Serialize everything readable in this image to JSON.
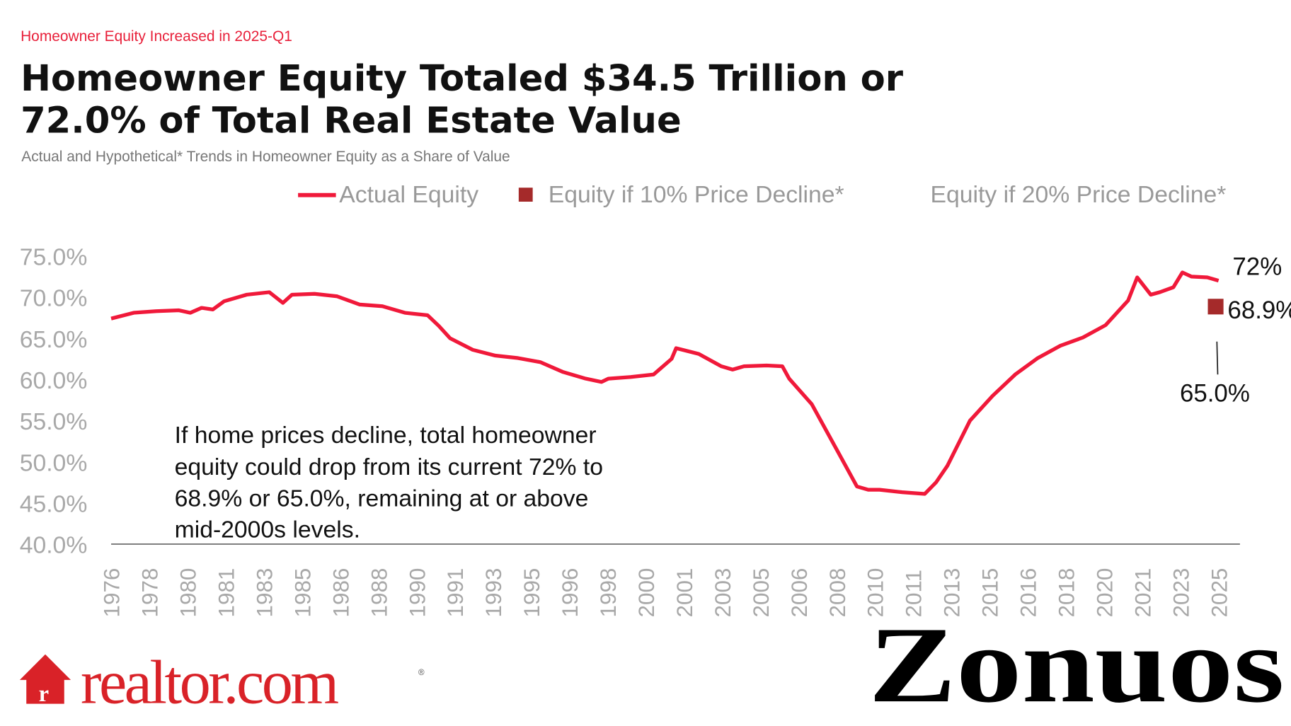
{
  "kicker": "Homeowner Equity Increased in 2025-Q1",
  "title_line1": "Homeowner Equity Totaled $34.5 Trillion or",
  "title_line2": "72.0% of Total Real Estate Value",
  "subtitle": "Actual and Hypothetical* Trends in Homeowner Equity as a Share of Value",
  "colors": {
    "accent": "#e8203a",
    "line": "#f0193a",
    "marker": "#a52a2a",
    "axis_text": "#9a9a9a",
    "text": "#111111"
  },
  "chart_data": {
    "type": "line",
    "title": "Homeowner Equity Totaled $34.5 Trillion or 72.0% of Total Real Estate Value",
    "ylim": [
      40,
      75
    ],
    "yticks": [
      "75.0%",
      "70.0%",
      "65.0%",
      "60.0%",
      "55.0%",
      "50.0%",
      "45.0%",
      "40.0%"
    ],
    "ytick_values": [
      75,
      70,
      65,
      60,
      55,
      50,
      45,
      40
    ],
    "xtick_labels": [
      "1976",
      "1978",
      "1980",
      "1981",
      "1983",
      "1985",
      "1986",
      "1988",
      "1990",
      "1991",
      "1993",
      "1995",
      "1996",
      "1998",
      "2000",
      "2001",
      "2003",
      "2005",
      "2006",
      "2008",
      "2010",
      "2011",
      "2013",
      "2015",
      "2016",
      "2018",
      "2020",
      "2021",
      "2023",
      "2025"
    ],
    "grid": false,
    "legend_position": "top",
    "legend": [
      "Actual Equity",
      "Equity if 10% Price Decline*",
      "Equity if 20% Price Decline*"
    ],
    "series": [
      {
        "name": "Actual Equity",
        "x": [
          1976,
          1977,
          1978,
          1979,
          1979.5,
          1980,
          1980.5,
          1981,
          1982,
          1983,
          1983.6,
          1984,
          1985,
          1986,
          1987,
          1988,
          1989,
          1990,
          1990.5,
          1991,
          1992,
          1993,
          1994,
          1995,
          1996,
          1997,
          1997.7,
          1998,
          1999,
          2000,
          2000.8,
          2001,
          2002,
          2003,
          2003.5,
          2004,
          2005,
          2005.7,
          2006,
          2007,
          2008,
          2009,
          2009.5,
          2010,
          2011,
          2012,
          2012.5,
          2013,
          2014,
          2015,
          2016,
          2017,
          2018,
          2019,
          2020,
          2021,
          2021.4,
          2022,
          2022.4,
          2023,
          2023.4,
          2023.8,
          2024.5,
          2025
        ],
        "y": [
          67.4,
          68.1,
          68.3,
          68.4,
          68.1,
          68.7,
          68.5,
          69.5,
          70.3,
          70.6,
          69.3,
          70.3,
          70.4,
          70.1,
          69.1,
          68.9,
          68.1,
          67.8,
          66.5,
          65,
          63.6,
          62.9,
          62.6,
          62.1,
          60.9,
          60.1,
          59.7,
          60.1,
          60.3,
          60.6,
          62.5,
          63.8,
          63.1,
          61.6,
          61.2,
          61.6,
          61.7,
          61.6,
          60.1,
          57,
          52,
          47,
          46.6,
          46.6,
          46.3,
          46.1,
          47.5,
          49.5,
          55,
          58,
          60.6,
          62.6,
          64.1,
          65.1,
          66.6,
          69.6,
          72.4,
          70.3,
          70.6,
          71.2,
          73,
          72.5,
          72.4,
          72.0
        ]
      },
      {
        "name": "Equity if 10% Price Decline*",
        "x": [
          2025
        ],
        "y": [
          68.9
        ]
      },
      {
        "name": "Equity if 20% Price Decline*",
        "x": [
          2025
        ],
        "y": [
          65.0
        ]
      }
    ],
    "data_labels": {
      "actual": "72%",
      "decline10": "68.9%",
      "decline20": "65.0%"
    },
    "annotation": [
      "If home prices decline, total homeowner",
      "equity could drop from its current 72% to",
      "68.9% or 65.0%, remaining at or above",
      "mid-2000s levels."
    ]
  },
  "logo": {
    "text": "realtor.com",
    "registered": "®"
  },
  "watermark": "Zonuos"
}
